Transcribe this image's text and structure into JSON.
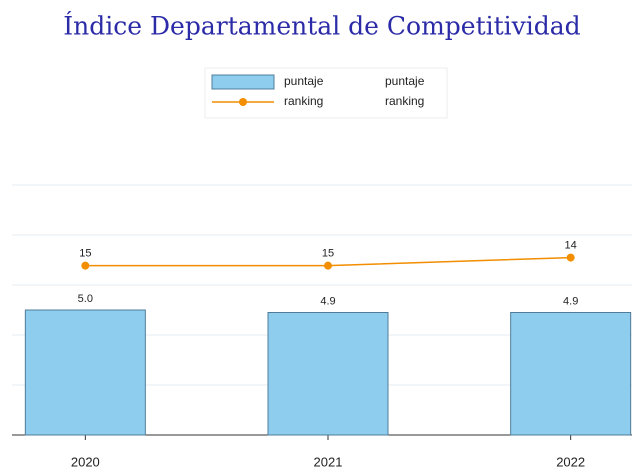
{
  "chart_data": {
    "type": "bar_line",
    "title": "Índice Departamental de Competitividad",
    "categories": [
      "2020",
      "2021",
      "2022"
    ],
    "series": [
      {
        "name": "puntaje",
        "type": "bar",
        "color": "#8ecdee",
        "values": [
          5.0,
          4.9,
          4.9
        ],
        "value_labels": [
          "5.0",
          "4.9",
          "4.9"
        ]
      },
      {
        "name": "ranking",
        "type": "line",
        "axis": "y2",
        "color": "#f28e00",
        "values": [
          15,
          15,
          14
        ]
      }
    ],
    "legend_second_column": [
      "puntaje",
      "ranking"
    ],
    "ylim": [
      0,
      10
    ],
    "yticks": [
      0,
      2,
      4,
      6,
      8,
      10
    ],
    "y2lim": [
      36,
      5
    ],
    "grid": true,
    "show_tick_labels": false
  }
}
